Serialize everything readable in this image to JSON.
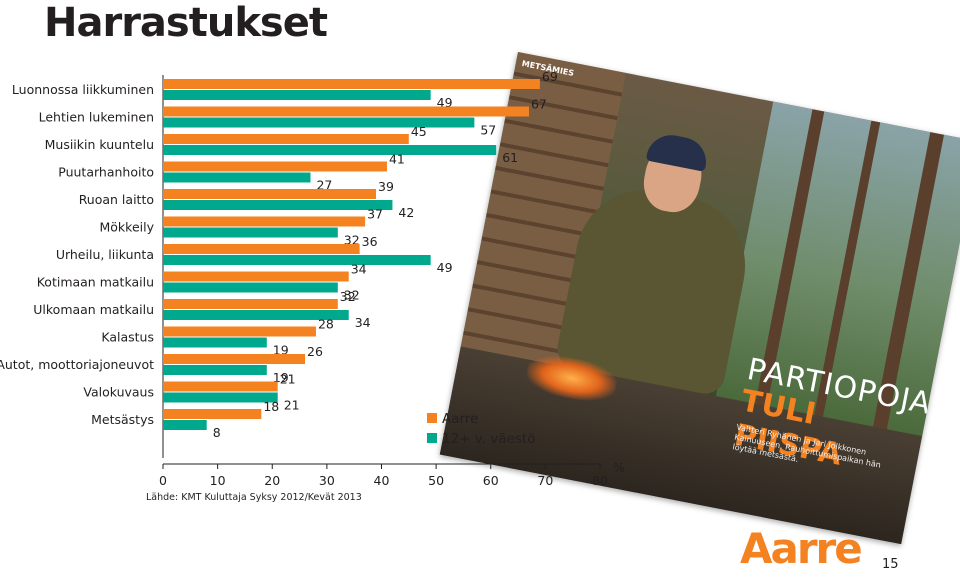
{
  "page": {
    "title": "Harrastukset",
    "source": "Lähde: KMT Kuluttaja Syksy 2012/Kevät 2013",
    "page_number": "15",
    "brand": "Aarre"
  },
  "magazine": {
    "tag": "METSÄMIES",
    "headline1": "PARTIOPOJA",
    "headline2": "TULI PIISPA",
    "lede": "Valtteri Ryhänen ja Jari Jolkkonen Kainuuseen. Rauhoittumispaikan hän löytää metsästä."
  },
  "chart_data": {
    "type": "bar",
    "orientation": "horizontal",
    "categories": [
      "Luonnossa liikkuminen",
      "Lehtien lukeminen",
      "Musiikin kuuntelu",
      "Puutarhanhoito",
      "Ruoan laitto",
      "Mökkeily",
      "Urheilu, liikunta",
      "Kotimaan matkailu",
      "Ulkomaan matkailu",
      "Kalastus",
      "Autot, moottoriajoneuvot",
      "Valokuvaus",
      "Metsästys"
    ],
    "series": [
      {
        "name": "Aarre",
        "color": "#f58220",
        "values": [
          69,
          67,
          45,
          41,
          39,
          37,
          36,
          34,
          32,
          28,
          26,
          21,
          18
        ]
      },
      {
        "name": "12+ v. väestö",
        "color": "#00a88e",
        "values": [
          49,
          57,
          61,
          27,
          42,
          32,
          49,
          32,
          34,
          19,
          19,
          21,
          8
        ]
      }
    ],
    "xlim": [
      0,
      80
    ],
    "xticks": [
      "0",
      "10",
      "20",
      "30",
      "40",
      "50",
      "60",
      "70",
      "80"
    ],
    "unit": "%",
    "legend": "right",
    "grid": false
  }
}
